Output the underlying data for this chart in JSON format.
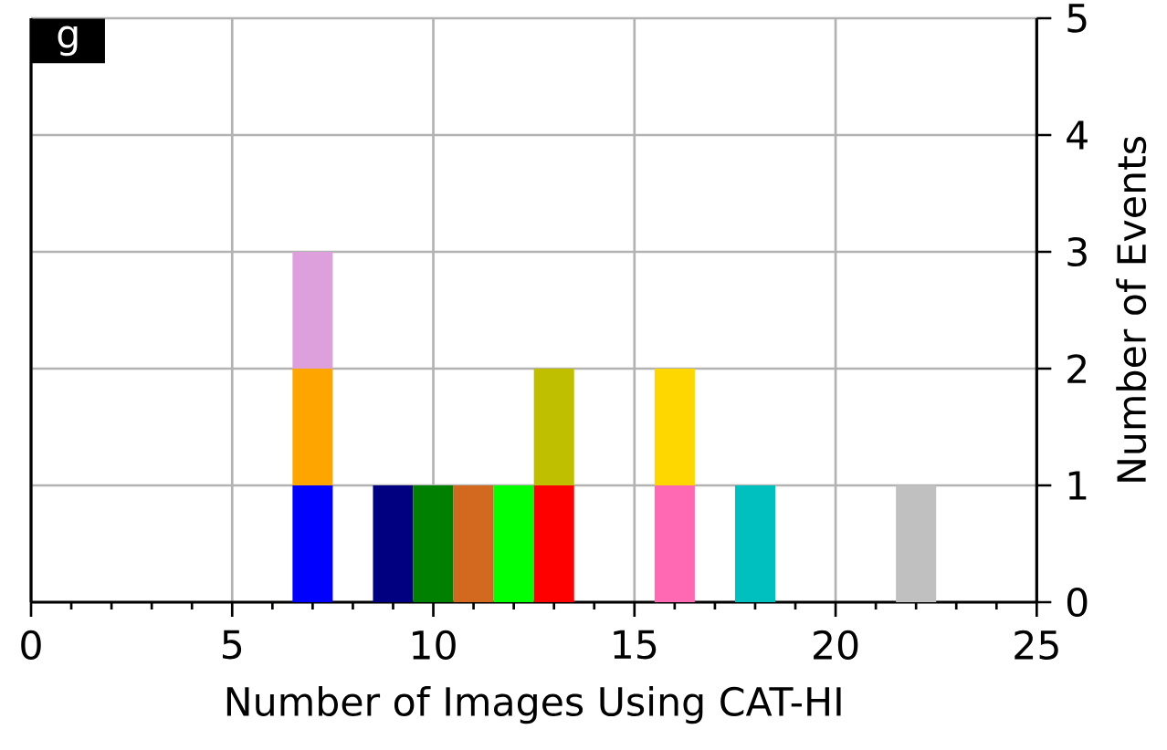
{
  "chart_data": {
    "type": "bar",
    "stacked": true,
    "x": [
      7,
      9,
      10,
      11,
      12,
      13,
      16,
      18,
      22
    ],
    "series": [
      {
        "color": "#0000ff",
        "values": [
          1,
          null,
          null,
          null,
          null,
          null,
          null,
          null,
          null
        ]
      },
      {
        "color": "#ffa500",
        "values": [
          1,
          null,
          null,
          null,
          null,
          null,
          null,
          null,
          null
        ]
      },
      {
        "color": "#dda0dd",
        "values": [
          1,
          null,
          null,
          null,
          null,
          null,
          null,
          null,
          null
        ]
      },
      {
        "color": "#000080",
        "values": [
          null,
          1,
          null,
          null,
          null,
          null,
          null,
          null,
          null
        ]
      },
      {
        "color": "#008000",
        "values": [
          null,
          null,
          1,
          null,
          null,
          null,
          null,
          null,
          null
        ]
      },
      {
        "color": "#d2691e",
        "values": [
          null,
          null,
          null,
          1,
          null,
          null,
          null,
          null,
          null
        ]
      },
      {
        "color": "#00ff00",
        "values": [
          null,
          null,
          null,
          null,
          1,
          null,
          null,
          null,
          null
        ]
      },
      {
        "color": "#ff0000",
        "values": [
          null,
          null,
          null,
          null,
          null,
          1,
          null,
          null,
          null
        ]
      },
      {
        "color": "#bfbf00",
        "values": [
          null,
          null,
          null,
          null,
          null,
          1,
          null,
          null,
          null
        ]
      },
      {
        "color": "#ff69b4",
        "values": [
          null,
          null,
          null,
          null,
          null,
          null,
          1,
          null,
          null
        ]
      },
      {
        "color": "#ffd700",
        "values": [
          null,
          null,
          null,
          null,
          null,
          null,
          1,
          null,
          null
        ]
      },
      {
        "color": "#00bfbf",
        "values": [
          null,
          null,
          null,
          null,
          null,
          null,
          null,
          1,
          null
        ]
      },
      {
        "color": "#c0c0c0",
        "values": [
          null,
          null,
          null,
          null,
          null,
          null,
          null,
          null,
          1
        ]
      }
    ],
    "xlabel": "Number of Images Using CAT-HI",
    "ylabel": "Number of Events",
    "xlim": [
      0,
      25
    ],
    "xticks": [
      0,
      5,
      10,
      15,
      20,
      25
    ],
    "ylim": [
      0,
      5
    ],
    "yticks": [
      0,
      1,
      2,
      3,
      4,
      5
    ],
    "grid": true,
    "annotations": [
      "g"
    ]
  }
}
